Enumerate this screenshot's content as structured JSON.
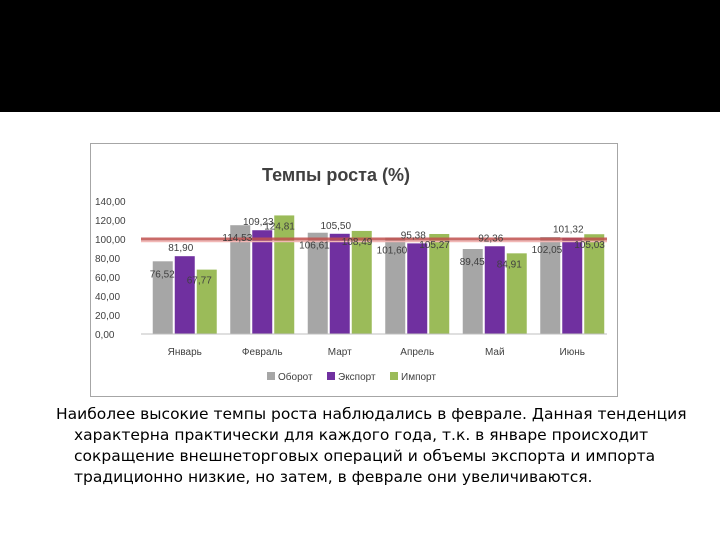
{
  "slide": {
    "caption_lines": [
      "Наиболее высокие темпы роста наблюдались в феврале. Данная тенденция",
      "характерна практически для каждого года, т.к. в январе происходит",
      "сокращение внешнеторговых операций  и объемы экспорта и импорта",
      "традиционно низкие, но затем, в феврале они увеличиваются."
    ]
  },
  "chart_data": {
    "type": "bar",
    "title": "Темпы роста (%)",
    "categories": [
      "Январь",
      "Февраль",
      "Март",
      "Апрель",
      "Май",
      "Июнь"
    ],
    "series": [
      {
        "name": "Оборот",
        "color": "#a6a6a6",
        "values": [
          76.52,
          114.53,
          106.61,
          101.6,
          89.45,
          102.05
        ],
        "labels": [
          "76,52",
          "114,53",
          "106,61",
          "101,60",
          "89,45",
          "102,05"
        ]
      },
      {
        "name": "Экспорт",
        "color": "#7030a0",
        "values": [
          81.9,
          109.23,
          105.5,
          95.38,
          92.36,
          101.32
        ],
        "labels": [
          "81,90",
          "109,23",
          "105,50",
          "95,38",
          "92,36",
          "101,32"
        ]
      },
      {
        "name": "Импорт",
        "color": "#9bbb59",
        "values": [
          67.77,
          124.81,
          108.49,
          105.27,
          84.91,
          105.03
        ],
        "labels": [
          "67,77",
          "124,81",
          "108,49",
          "105,27",
          "84,91",
          "105,03"
        ]
      }
    ],
    "yticks": [
      "0,00",
      "20,00",
      "40,00",
      "60,00",
      "80,00",
      "100,00",
      "120,00",
      "140,00"
    ],
    "ylim": [
      0,
      140
    ],
    "reference_line": {
      "value": 100,
      "color": "#c0504d"
    },
    "grid": false,
    "legend_position": "bottom"
  }
}
